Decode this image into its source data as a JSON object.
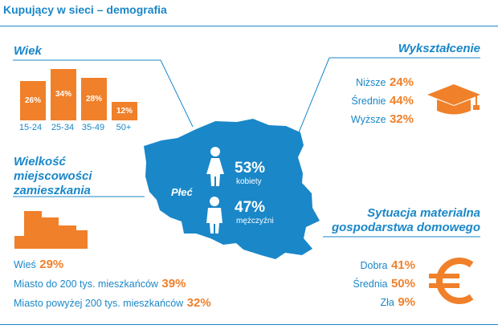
{
  "title": "Kupujący w sieci – demografia",
  "age": {
    "heading": "Wiek",
    "bars": [
      {
        "label": "15-24",
        "value": 26,
        "text": "26%"
      },
      {
        "label": "25-34",
        "value": 34,
        "text": "34%"
      },
      {
        "label": "35-49",
        "value": 28,
        "text": "28%"
      },
      {
        "label": "50+",
        "value": 12,
        "text": "12%"
      }
    ]
  },
  "education": {
    "heading": "Wykształcenie",
    "items": [
      {
        "label": "Niższe",
        "value": "24%"
      },
      {
        "label": "Średnie",
        "value": "44%"
      },
      {
        "label": "Wyższe",
        "value": "32%"
      }
    ]
  },
  "town": {
    "heading_line1": "Wielkość",
    "heading_line2": "miejscowości",
    "heading_line3": "zamieszkania",
    "items": [
      {
        "label": "Wieś",
        "value": "29%"
      },
      {
        "label": "Miasto do 200 tys. mieszkańców",
        "value": "39%"
      },
      {
        "label": "Miasto powyżej 200 tys. mieszkańców",
        "value": "32%"
      }
    ]
  },
  "gender": {
    "heading": "Płeć",
    "female": {
      "value": "53%",
      "label": "kobiety"
    },
    "male": {
      "value": "47%",
      "label": "mężczyźni"
    }
  },
  "material": {
    "heading_line1": "Sytuacja materialna",
    "heading_line2": "gospodarstwa domowego",
    "items": [
      {
        "label": "Dobra",
        "value": "41%"
      },
      {
        "label": "Średnia",
        "value": "50%"
      },
      {
        "label": "Zła",
        "value": "9%"
      }
    ]
  },
  "colors": {
    "blue": "#1a87c8",
    "orange": "#f0802a"
  },
  "icons": [
    "graduation-cap-icon",
    "euro-icon",
    "female-icon",
    "male-icon",
    "buildings-icon"
  ]
}
